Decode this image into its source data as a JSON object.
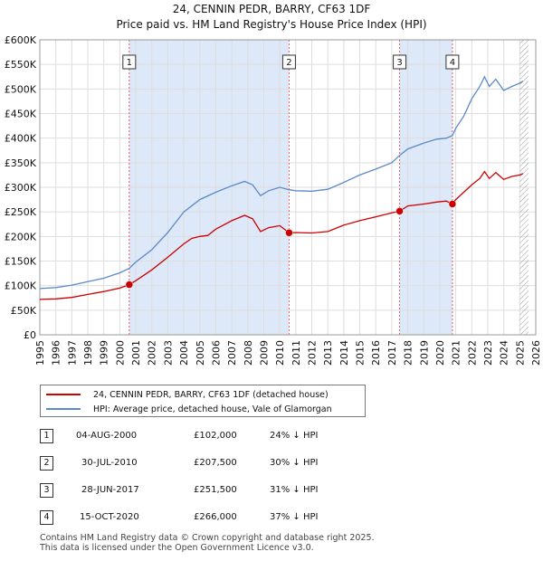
{
  "title_line1": "24, CENNIN PEDR, BARRY, CF63 1DF",
  "title_line2": "Price paid vs. HM Land Registry's House Price Index (HPI)",
  "colors": {
    "property": "#cc0000",
    "hpi": "#5b8ac8",
    "band": "#dde8f8",
    "marker_line": "#e06060",
    "grid": "#dddddd"
  },
  "chart_data": {
    "type": "line",
    "title": "24, CENNIN PEDR, BARRY, CF63 1DF — Price paid vs. HM Land Registry's House Price Index (HPI)",
    "xlabel": "",
    "ylabel": "",
    "xlim": [
      1995,
      2026
    ],
    "ylim": [
      0,
      600000
    ],
    "x_ticks": [
      "1995",
      "1996",
      "1997",
      "1998",
      "1999",
      "2000",
      "2001",
      "2002",
      "2003",
      "2004",
      "2005",
      "2006",
      "2007",
      "2008",
      "2009",
      "2010",
      "2011",
      "2012",
      "2013",
      "2014",
      "2015",
      "2016",
      "2017",
      "2018",
      "2019",
      "2020",
      "2021",
      "2022",
      "2023",
      "2024",
      "2025",
      "2026"
    ],
    "y_ticks": [
      {
        "value": 0,
        "label": "£0"
      },
      {
        "value": 50000,
        "label": "£50K"
      },
      {
        "value": 100000,
        "label": "£100K"
      },
      {
        "value": 150000,
        "label": "£150K"
      },
      {
        "value": 200000,
        "label": "£200K"
      },
      {
        "value": 250000,
        "label": "£250K"
      },
      {
        "value": 300000,
        "label": "£300K"
      },
      {
        "value": 350000,
        "label": "£350K"
      },
      {
        "value": 400000,
        "label": "£400K"
      },
      {
        "value": 450000,
        "label": "£450K"
      },
      {
        "value": 500000,
        "label": "£500K"
      },
      {
        "value": 550000,
        "label": "£550K"
      },
      {
        "value": 600000,
        "label": "£600K"
      }
    ],
    "grid": true,
    "shaded_periods": [
      [
        2000.59,
        2010.58
      ],
      [
        2017.49,
        2020.79
      ]
    ],
    "projection_from": 2025.0,
    "series": [
      {
        "name": "24, CENNIN PEDR, BARRY, CF63 1DF (detached house)",
        "color": "#cc0000",
        "points": [
          [
            1995.0,
            72000
          ],
          [
            1996.0,
            73000
          ],
          [
            1997.0,
            76000
          ],
          [
            1998.0,
            82000
          ],
          [
            1999.0,
            88000
          ],
          [
            2000.0,
            95000
          ],
          [
            2000.59,
            102000
          ],
          [
            2001.0,
            110000
          ],
          [
            2002.0,
            132000
          ],
          [
            2003.0,
            158000
          ],
          [
            2004.0,
            185000
          ],
          [
            2004.5,
            196000
          ],
          [
            2005.0,
            200000
          ],
          [
            2005.5,
            202000
          ],
          [
            2006.0,
            215000
          ],
          [
            2007.0,
            232000
          ],
          [
            2007.8,
            243000
          ],
          [
            2008.3,
            236000
          ],
          [
            2008.8,
            210000
          ],
          [
            2009.3,
            218000
          ],
          [
            2010.0,
            222000
          ],
          [
            2010.58,
            207500
          ],
          [
            2011.0,
            208000
          ],
          [
            2012.0,
            207000
          ],
          [
            2013.0,
            210000
          ],
          [
            2014.0,
            223000
          ],
          [
            2015.0,
            232000
          ],
          [
            2016.0,
            240000
          ],
          [
            2017.0,
            248000
          ],
          [
            2017.49,
            251500
          ],
          [
            2018.0,
            262000
          ],
          [
            2019.0,
            266000
          ],
          [
            2019.8,
            270000
          ],
          [
            2020.4,
            272000
          ],
          [
            2020.79,
            266000
          ],
          [
            2021.0,
            275000
          ],
          [
            2021.5,
            290000
          ],
          [
            2022.0,
            305000
          ],
          [
            2022.5,
            318000
          ],
          [
            2022.8,
            332000
          ],
          [
            2023.1,
            318000
          ],
          [
            2023.5,
            330000
          ],
          [
            2024.0,
            316000
          ],
          [
            2024.5,
            322000
          ],
          [
            2025.0,
            325000
          ],
          [
            2025.2,
            328000
          ]
        ]
      },
      {
        "name": "HPI: Average price, detached house, Vale of Glamorgan",
        "color": "#5b8ac8",
        "points": [
          [
            1995.0,
            94000
          ],
          [
            1996.0,
            96000
          ],
          [
            1997.0,
            101000
          ],
          [
            1998.0,
            108000
          ],
          [
            1999.0,
            115000
          ],
          [
            2000.0,
            126000
          ],
          [
            2000.59,
            135000
          ],
          [
            2001.0,
            148000
          ],
          [
            2002.0,
            173000
          ],
          [
            2003.0,
            208000
          ],
          [
            2004.0,
            250000
          ],
          [
            2005.0,
            275000
          ],
          [
            2006.0,
            290000
          ],
          [
            2007.0,
            303000
          ],
          [
            2007.8,
            312000
          ],
          [
            2008.3,
            305000
          ],
          [
            2008.8,
            283000
          ],
          [
            2009.3,
            293000
          ],
          [
            2010.0,
            300000
          ],
          [
            2010.58,
            295000
          ],
          [
            2011.0,
            293000
          ],
          [
            2012.0,
            292000
          ],
          [
            2013.0,
            296000
          ],
          [
            2014.0,
            310000
          ],
          [
            2015.0,
            325000
          ],
          [
            2016.0,
            337000
          ],
          [
            2017.0,
            350000
          ],
          [
            2017.49,
            365000
          ],
          [
            2018.0,
            378000
          ],
          [
            2019.0,
            390000
          ],
          [
            2019.8,
            398000
          ],
          [
            2020.4,
            400000
          ],
          [
            2020.79,
            405000
          ],
          [
            2021.0,
            420000
          ],
          [
            2021.5,
            445000
          ],
          [
            2022.0,
            480000
          ],
          [
            2022.5,
            505000
          ],
          [
            2022.8,
            525000
          ],
          [
            2023.1,
            505000
          ],
          [
            2023.5,
            520000
          ],
          [
            2024.0,
            497000
          ],
          [
            2024.5,
            505000
          ],
          [
            2025.0,
            512000
          ],
          [
            2025.2,
            516000
          ]
        ]
      }
    ],
    "annotations": [
      {
        "label": "1",
        "x": 2000.59,
        "y": 102000
      },
      {
        "label": "2",
        "x": 2010.58,
        "y": 207500
      },
      {
        "label": "3",
        "x": 2017.49,
        "y": 251500
      },
      {
        "label": "4",
        "x": 2020.79,
        "y": 266000
      }
    ]
  },
  "legend": {
    "property_label": "24, CENNIN PEDR, BARRY, CF63 1DF (detached house)",
    "hpi_label": "HPI: Average price, detached house, Vale of Glamorgan"
  },
  "sales": [
    {
      "num": "1",
      "date": "04-AUG-2000",
      "price": "£102,000",
      "hpi": "24% ↓ HPI"
    },
    {
      "num": "2",
      "date": "30-JUL-2010",
      "price": "£207,500",
      "hpi": "30% ↓ HPI"
    },
    {
      "num": "3",
      "date": "28-JUN-2017",
      "price": "£251,500",
      "hpi": "31% ↓ HPI"
    },
    {
      "num": "4",
      "date": "15-OCT-2020",
      "price": "£266,000",
      "hpi": "37% ↓ HPI"
    }
  ],
  "footer": {
    "line1": "Contains HM Land Registry data © Crown copyright and database right 2025.",
    "line2": "This data is licensed under the Open Government Licence v3.0."
  }
}
